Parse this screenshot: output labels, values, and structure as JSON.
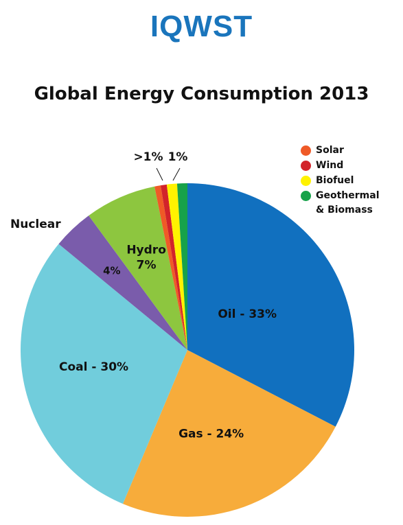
{
  "logo": "IQWST",
  "chart_data": {
    "type": "pie",
    "title": "Global Energy Consumption 2013",
    "slices": [
      {
        "name": "Oil",
        "value": 33,
        "label": "Oil - 33%",
        "color": "#1170bf"
      },
      {
        "name": "Gas",
        "value": 24,
        "label": "Gas - 24%",
        "color": "#f7ac3b"
      },
      {
        "name": "Coal",
        "value": 30,
        "label": "Coal - 30%",
        "color": "#71cddc"
      },
      {
        "name": "Nuclear",
        "value": 4,
        "label": "4%",
        "color": "#7a5cab"
      },
      {
        "name": "Hydro",
        "value": 7,
        "label": "Hydro\n7%",
        "color": "#8dc63f"
      },
      {
        "name": "Solar",
        "value": 0.6,
        "color": "#ef5a27"
      },
      {
        "name": "Wind",
        "value": 0.6,
        "color": "#d2232a"
      },
      {
        "name": "Biofuel",
        "value": 1,
        "color": "#fff200"
      },
      {
        "name": "Geothermal & Biomass",
        "value": 1,
        "color": "#17a24a"
      }
    ],
    "outside_labels": [
      "Nuclear",
      ">1%",
      "1%"
    ],
    "legend": [
      {
        "label": "Solar",
        "color": "#ef5a27"
      },
      {
        "label": "Wind",
        "color": "#d2232a"
      },
      {
        "label": "Biofuel",
        "color": "#fff200"
      },
      {
        "label": "Geothermal",
        "label2": "& Biomass",
        "color": "#17a24a"
      }
    ],
    "legend_position": "top-right"
  }
}
